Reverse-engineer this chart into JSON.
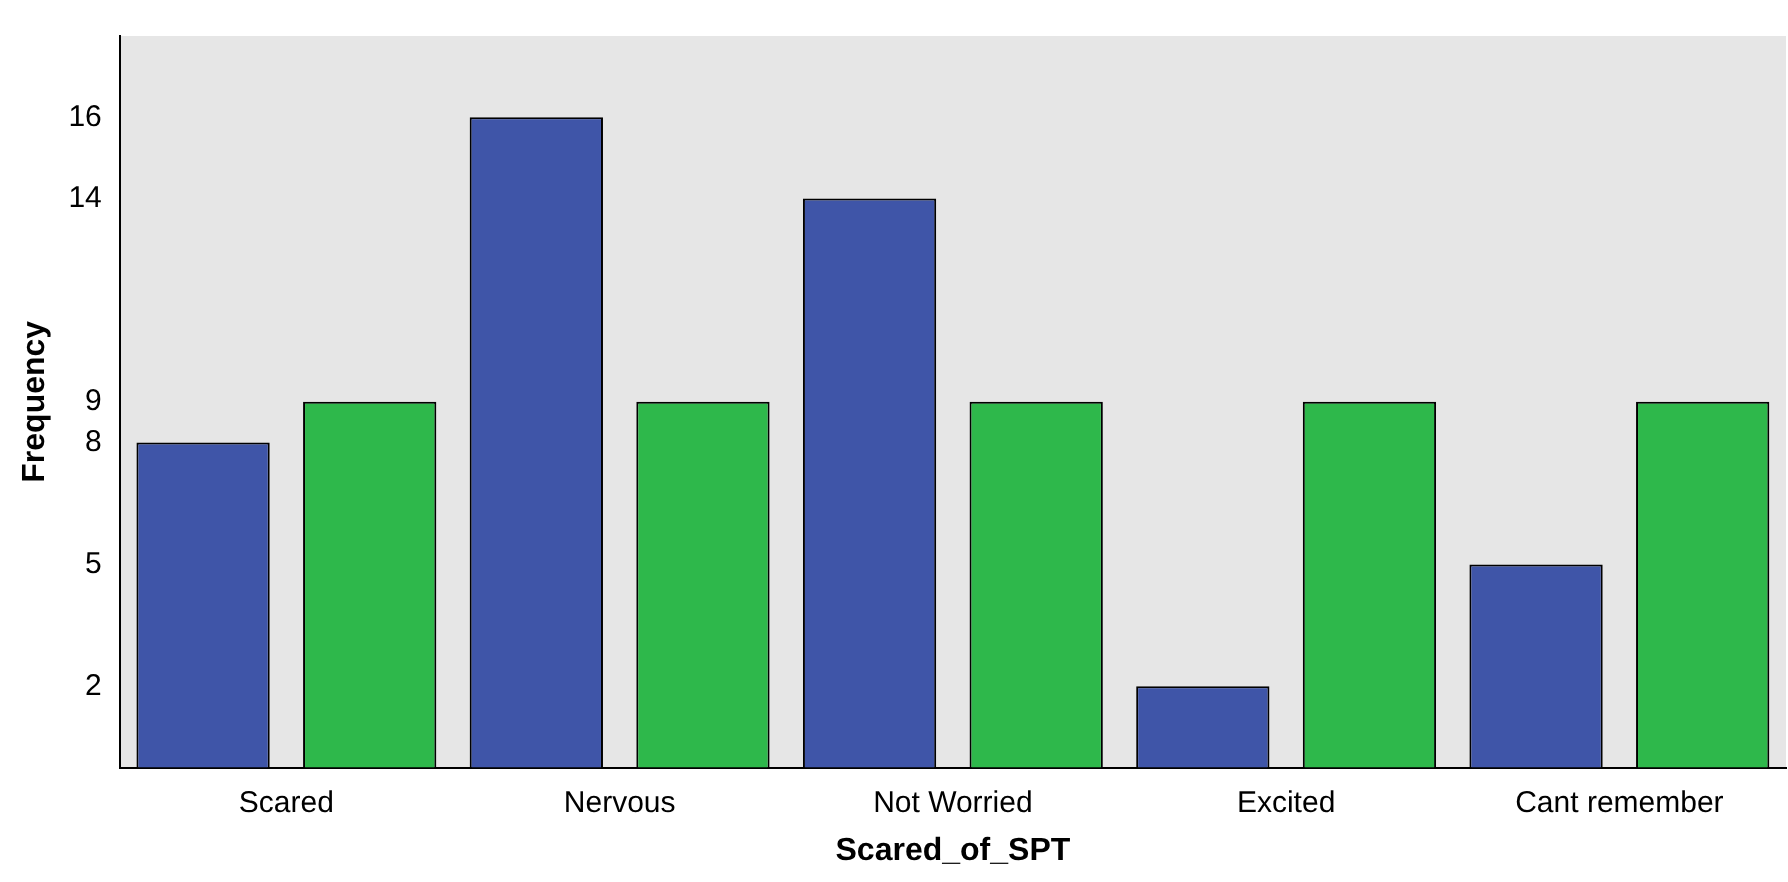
{
  "chart_data": {
    "type": "bar",
    "xlabel": "Scared_of_SPT",
    "ylabel": "Frequency",
    "categories": [
      "Scared",
      "Nervous",
      "Not Worried",
      "Excited",
      "Cant remember"
    ],
    "series": [
      {
        "color": "#3f55a8",
        "values": [
          8,
          16,
          14,
          2,
          5
        ]
      },
      {
        "color": "#2eb84b",
        "values": [
          9,
          9,
          9,
          9,
          9
        ]
      }
    ],
    "ylim": [
      0,
      18
    ],
    "yticks": [
      2,
      5,
      8,
      9,
      14,
      16
    ],
    "grid": false,
    "legend": false
  }
}
